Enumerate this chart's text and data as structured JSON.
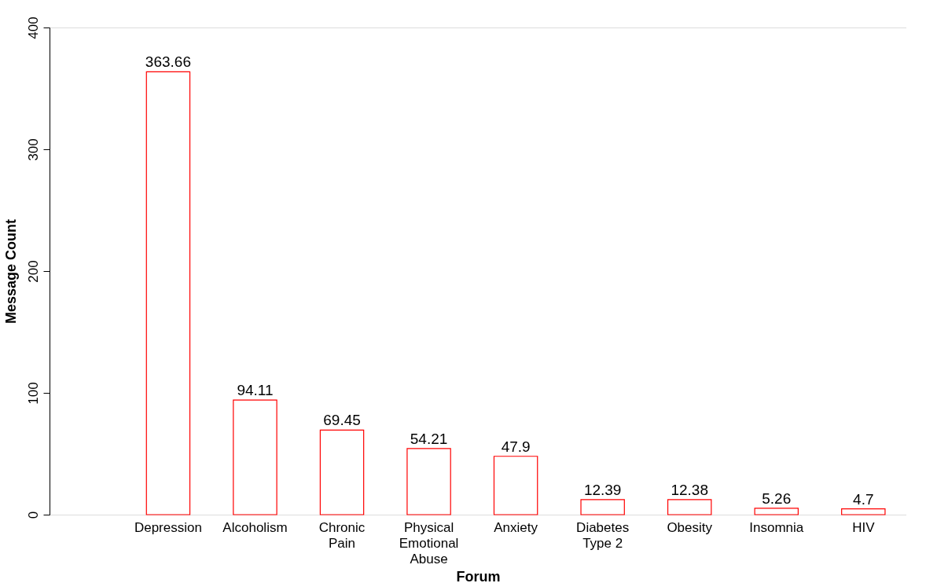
{
  "chart_data": {
    "type": "bar",
    "xlabel": "Forum",
    "ylabel": "Message Count",
    "categories": [
      "Depression",
      "Alcoholism",
      "Chronic\nPain",
      "Physical\nEmotional\nAbuse",
      "Anxiety",
      "Diabetes\nType 2",
      "Obesity",
      "Insomnia",
      "HIV"
    ],
    "values": [
      363.66,
      94.11,
      69.45,
      54.21,
      47.9,
      12.39,
      12.38,
      5.26,
      4.7
    ],
    "color": "#ff0000",
    "ylim": [
      0,
      400
    ],
    "yticks": [
      0,
      100,
      200,
      300,
      400
    ],
    "grid": false,
    "data_labels": true
  }
}
